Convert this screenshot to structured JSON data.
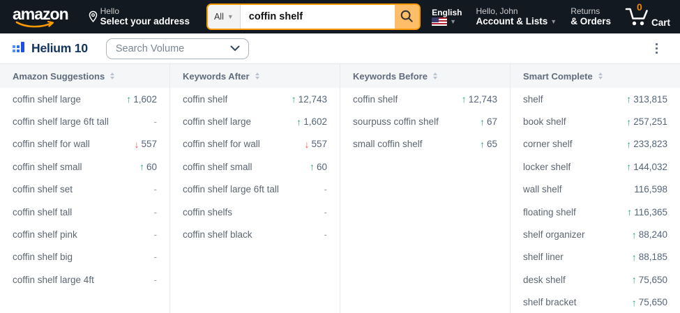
{
  "amazon_header": {
    "logo_text": "amazon",
    "deliver": {
      "line1": "Hello",
      "line2": "Select your address"
    },
    "search": {
      "category": "All",
      "value": "coffin shelf"
    },
    "language": {
      "label": "English"
    },
    "account": {
      "line1": "Hello, John",
      "line2": "Account & Lists"
    },
    "orders": {
      "line1": "Returns",
      "line2": "& Orders"
    },
    "cart": {
      "count": "0",
      "label": "Cart"
    }
  },
  "helium_bar": {
    "brand": "Helium 10",
    "metric_dropdown": "Search Volume"
  },
  "icons": {
    "location-pin-icon": "map pin outline",
    "search-icon": "magnifier",
    "cart-icon": "shopping cart outline",
    "flag-icon": "US flag",
    "chevron-down-icon": "˅",
    "kebab-menu-icon": "⋮",
    "sort-icon": "stacked up/down triangles",
    "trend-up-icon": "↑",
    "trend-down-icon": "↓"
  },
  "colors": {
    "amazon_bar_bg": "#131921",
    "amazon_orange": "#ff9900",
    "search_button": "#febd69",
    "cart_count": "#f08804",
    "helium_navy": "#12335e",
    "helium_blue": "#2b6ef2",
    "header_row_bg": "#f5f6f8",
    "divider": "#e7eaee",
    "keyword_text": "#5c6672",
    "value_text": "#54657a",
    "trend_up": "#27a583",
    "trend_down": "#f2564d"
  },
  "panel": {
    "columns": [
      {
        "header": "Amazon Suggestions",
        "rows": [
          {
            "kw": "coffin shelf large",
            "value": "1,602",
            "trend": "up"
          },
          {
            "kw": "coffin shelf large 6ft tall",
            "value": "-",
            "trend": "none"
          },
          {
            "kw": "coffin shelf for wall",
            "value": "557",
            "trend": "down"
          },
          {
            "kw": "coffin shelf small",
            "value": "60",
            "trend": "up"
          },
          {
            "kw": "coffin shelf set",
            "value": "-",
            "trend": "none"
          },
          {
            "kw": "coffin shelf tall",
            "value": "-",
            "trend": "none"
          },
          {
            "kw": "coffin shelf pink",
            "value": "-",
            "trend": "none"
          },
          {
            "kw": "coffin shelf big",
            "value": "-",
            "trend": "none"
          },
          {
            "kw": "coffin shelf large 4ft",
            "value": "-",
            "trend": "none"
          }
        ]
      },
      {
        "header": "Keywords After",
        "rows": [
          {
            "kw": "coffin shelf",
            "value": "12,743",
            "trend": "up"
          },
          {
            "kw": "coffin shelf large",
            "value": "1,602",
            "trend": "up"
          },
          {
            "kw": "coffin shelf for wall",
            "value": "557",
            "trend": "down"
          },
          {
            "kw": "coffin shelf small",
            "value": "60",
            "trend": "up"
          },
          {
            "kw": "coffin shelf large 6ft tall",
            "value": "-",
            "trend": "none"
          },
          {
            "kw": "coffin shelfs",
            "value": "-",
            "trend": "none"
          },
          {
            "kw": "coffin shelf black",
            "value": "-",
            "trend": "none"
          }
        ]
      },
      {
        "header": "Keywords Before",
        "rows": [
          {
            "kw": "coffin shelf",
            "value": "12,743",
            "trend": "up"
          },
          {
            "kw": "sourpuss coffin shelf",
            "value": "67",
            "trend": "up"
          },
          {
            "kw": "small coffin shelf",
            "value": "65",
            "trend": "up"
          }
        ]
      },
      {
        "header": "Smart Complete",
        "rows": [
          {
            "kw": "shelf",
            "value": "313,815",
            "trend": "up"
          },
          {
            "kw": "book shelf",
            "value": "257,251",
            "trend": "up"
          },
          {
            "kw": "corner shelf",
            "value": "233,823",
            "trend": "up"
          },
          {
            "kw": "locker shelf",
            "value": "144,032",
            "trend": "up"
          },
          {
            "kw": "wall shelf",
            "value": "116,598",
            "trend": "flat"
          },
          {
            "kw": "floating shelf",
            "value": "116,365",
            "trend": "up"
          },
          {
            "kw": "shelf organizer",
            "value": "88,240",
            "trend": "up"
          },
          {
            "kw": "shelf liner",
            "value": "88,185",
            "trend": "up"
          },
          {
            "kw": "desk shelf",
            "value": "75,650",
            "trend": "up"
          },
          {
            "kw": "shelf bracket",
            "value": "75,650",
            "trend": "up"
          }
        ]
      }
    ]
  }
}
